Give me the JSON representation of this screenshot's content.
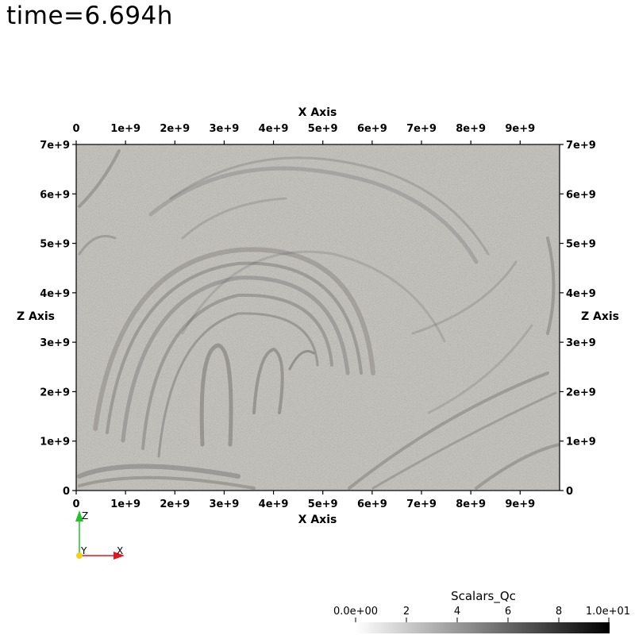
{
  "time_label": "time=6.694h",
  "chart_data": {
    "type": "heatmap",
    "field": "Scalars_Qc",
    "xlabel": "X Axis",
    "ylabel": "Z Axis",
    "xlim": [
      0,
      9800000000
    ],
    "ylim": [
      0,
      7000000000
    ],
    "x_ticks": [
      {
        "value": 0,
        "label": "0"
      },
      {
        "value": 1000000000,
        "label": "1e+9"
      },
      {
        "value": 2000000000,
        "label": "2e+9"
      },
      {
        "value": 3000000000,
        "label": "3e+9"
      },
      {
        "value": 4000000000,
        "label": "4e+9"
      },
      {
        "value": 5000000000,
        "label": "5e+9"
      },
      {
        "value": 6000000000,
        "label": "6e+9"
      },
      {
        "value": 7000000000,
        "label": "7e+9"
      },
      {
        "value": 8000000000,
        "label": "8e+9"
      },
      {
        "value": 9000000000,
        "label": "9e+9"
      }
    ],
    "y_ticks": [
      {
        "value": 0,
        "label": "0"
      },
      {
        "value": 1000000000,
        "label": "1e+9"
      },
      {
        "value": 2000000000,
        "label": "2e+9"
      },
      {
        "value": 3000000000,
        "label": "3e+9"
      },
      {
        "value": 4000000000,
        "label": "4e+9"
      },
      {
        "value": 5000000000,
        "label": "5e+9"
      },
      {
        "value": 6000000000,
        "label": "6e+9"
      },
      {
        "value": 7000000000,
        "label": "7e+9"
      }
    ],
    "colorbar": {
      "title": "Scalars_Qc",
      "range": [
        0,
        10
      ],
      "colors": [
        "#ffffff",
        "#000000"
      ],
      "ticks": [
        {
          "value": 0,
          "label": "0.0e+00"
        },
        {
          "value": 2,
          "label": "2"
        },
        {
          "value": 4,
          "label": "4"
        },
        {
          "value": 6,
          "label": "6"
        },
        {
          "value": 8,
          "label": "8"
        },
        {
          "value": 10,
          "label": "1.0e+01"
        }
      ]
    },
    "background_color": "#c3c1bb",
    "streak_color": "#4a4947"
  },
  "orientation": {
    "x_label": "X",
    "y_label": "Y",
    "z_label": "Z",
    "x_color": "#e8141b",
    "y_color": "#f2d01c",
    "z_color": "#22c22e"
  }
}
